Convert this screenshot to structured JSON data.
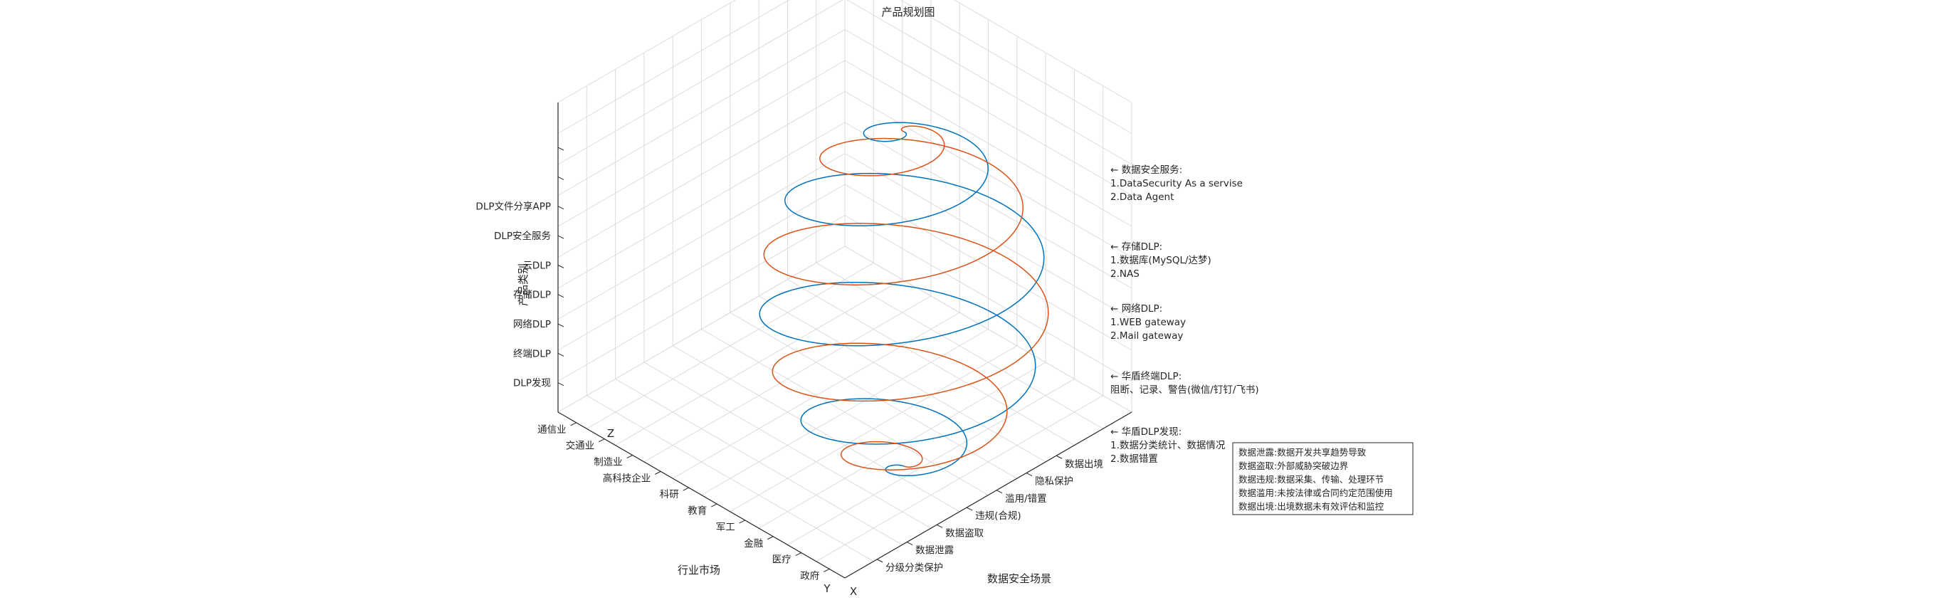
{
  "chart_data": {
    "type": "line",
    "title": "产品规划图",
    "xlabel": "数据安全场景",
    "ylabel": "行业市场",
    "zlabel": "产品类别",
    "axis_letters": {
      "x": "X",
      "y": "Y",
      "z": "Z"
    },
    "x_ticks": [
      "分级分类保护",
      "数据泄露",
      "数据盗取",
      "违规(合规)",
      "滥用/错置",
      "隐私保护",
      "数据出境"
    ],
    "y_ticks": [
      "政府",
      "医疗",
      "金融",
      "军工",
      "教育",
      "科研",
      "高科技企业",
      "制造业",
      "交通业",
      "通信业"
    ],
    "z_ticks": [
      "DLP发现",
      "终端DLP",
      "网络DLP",
      "存储DLP",
      "云DLP",
      "DLP安全服务",
      "DLP文件分享APP",
      "",
      ""
    ],
    "grid": true,
    "series": [
      {
        "color": "#0072BD",
        "turns": 4.5,
        "phase": 0
      },
      {
        "color": "#D95319",
        "turns": 4.5,
        "phase": 180
      }
    ],
    "annotations": [
      {
        "lines": [
          "← 数据安全服务:",
          "1.DataSecurity As a servise",
          "2.Data Agent"
        ]
      },
      {
        "lines": [
          "← 存储DLP:",
          "1.数据库(MySQL/达梦)",
          "2.NAS"
        ]
      },
      {
        "lines": [
          "← 网络DLP:",
          "1.WEB gateway",
          "2.Mail gateway"
        ]
      },
      {
        "lines": [
          "← 华盾终端DLP:",
          "阻断、记录、警告(微信/钉钉/飞书)"
        ]
      },
      {
        "lines": [
          "← 华盾DLP发现:",
          "1.数据分类统计、数据情况",
          "2.数据错置"
        ]
      }
    ],
    "legend_lines": [
      "数据泄露:数据开发共享趋势导致",
      "数据盗取:外部威胁突破边界",
      "数据违规:数据采集、传输、处理环节",
      "数据滥用:未按法律或合同约定范围使用",
      "数据出境:出境数据未有效评估和监控"
    ]
  }
}
